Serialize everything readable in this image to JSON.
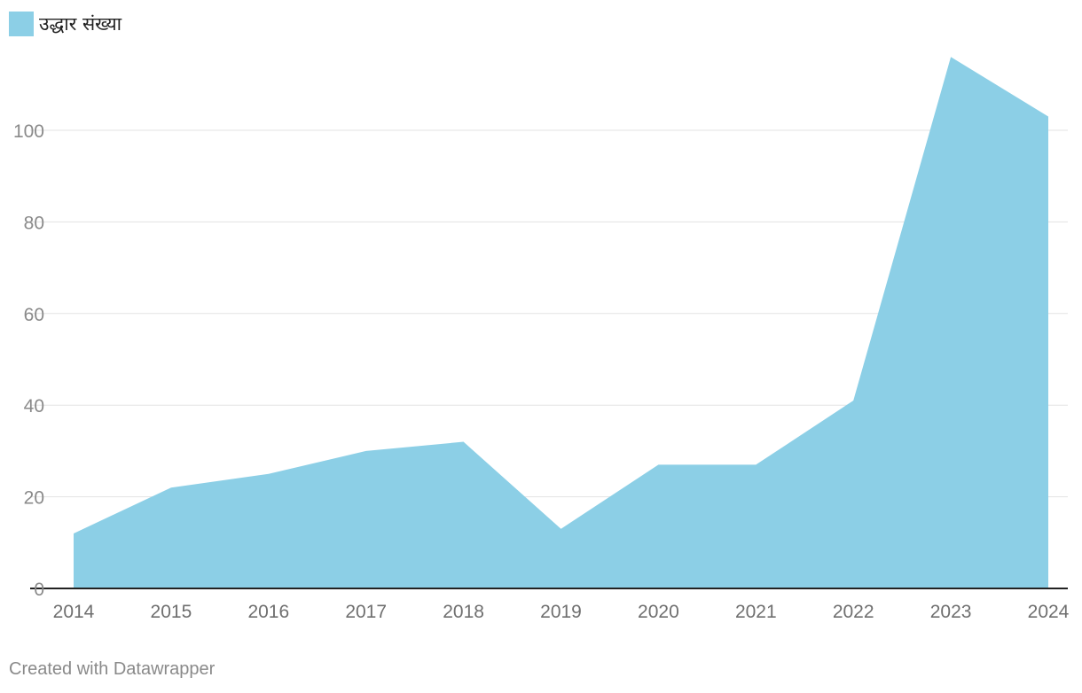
{
  "chart_data": {
    "type": "area",
    "x": [
      "2014",
      "2015",
      "2016",
      "2017",
      "2018",
      "2019",
      "2020",
      "2021",
      "2022",
      "2023",
      "2024"
    ],
    "series": [
      {
        "name": "उद्धार संख्या",
        "values": [
          12,
          22,
          25,
          30,
          32,
          13,
          27,
          27,
          41,
          116,
          103
        ],
        "color": "#8ccfe6"
      }
    ],
    "yticks": [
      0,
      20,
      40,
      60,
      80,
      100
    ],
    "ylim": [
      0,
      120
    ],
    "grid": true,
    "legend": "top-left"
  },
  "footer": "Created with Datawrapper"
}
